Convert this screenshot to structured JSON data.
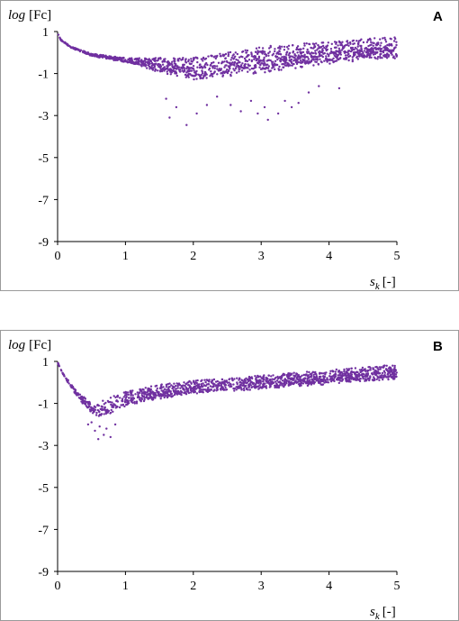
{
  "chart_data": [
    {
      "type": "scatter",
      "panel_label": "A",
      "ylabel_italic": "log",
      "ylabel_rest": "[Fc]",
      "xlabel_main": "s",
      "xlabel_sub": "k",
      "xlabel_unit": "[-]",
      "xlim": [
        0,
        5
      ],
      "ylim": [
        -9,
        1
      ],
      "x_ticks": [
        "0",
        "1",
        "2",
        "3",
        "4",
        "5"
      ],
      "y_ticks": [
        "1",
        "-1",
        "-3",
        "-5",
        "-7",
        "-9"
      ],
      "grid": false,
      "marker_color": "#7030A0",
      "trend": [
        [
          0,
          0.95
        ],
        [
          0.05,
          0.6
        ],
        [
          0.2,
          0.25
        ],
        [
          0.5,
          -0.1
        ],
        [
          1,
          -0.35
        ],
        [
          1.5,
          -0.55
        ],
        [
          2,
          -0.7
        ],
        [
          2.5,
          -0.5
        ],
        [
          3,
          -0.25
        ],
        [
          3.5,
          -0.1
        ],
        [
          4,
          0.05
        ],
        [
          4.5,
          0.2
        ],
        [
          5,
          0.3
        ]
      ],
      "spread": [
        [
          0,
          0.02
        ],
        [
          0.5,
          0.05
        ],
        [
          1,
          0.1
        ],
        [
          1.5,
          0.3
        ],
        [
          2,
          0.45
        ],
        [
          2.5,
          0.5
        ],
        [
          3,
          0.55
        ],
        [
          3.5,
          0.5
        ],
        [
          4,
          0.45
        ],
        [
          4.5,
          0.45
        ],
        [
          5,
          0.45
        ]
      ],
      "outliers": [
        [
          1.6,
          -2.2
        ],
        [
          1.65,
          -3.1
        ],
        [
          1.75,
          -2.6
        ],
        [
          1.9,
          -3.45
        ],
        [
          2.05,
          -2.9
        ],
        [
          2.2,
          -2.5
        ],
        [
          2.35,
          -2.1
        ],
        [
          2.55,
          -2.5
        ],
        [
          2.7,
          -2.8
        ],
        [
          2.85,
          -2.3
        ],
        [
          2.95,
          -2.9
        ],
        [
          3.05,
          -2.6
        ],
        [
          3.1,
          -3.2
        ],
        [
          3.25,
          -2.9
        ],
        [
          3.35,
          -2.3
        ],
        [
          3.45,
          -2.6
        ],
        [
          3.55,
          -2.4
        ],
        [
          3.7,
          -1.9
        ],
        [
          3.85,
          -1.6
        ],
        [
          4.15,
          -1.7
        ]
      ]
    },
    {
      "type": "scatter",
      "panel_label": "B",
      "ylabel_italic": "log",
      "ylabel_rest": "[Fc]",
      "xlabel_main": "s",
      "xlabel_sub": "k",
      "xlabel_unit": "[-]",
      "xlim": [
        0,
        5
      ],
      "ylim": [
        -9,
        1
      ],
      "x_ticks": [
        "0",
        "1",
        "2",
        "3",
        "4",
        "5"
      ],
      "y_ticks": [
        "1",
        "-1",
        "-3",
        "-5",
        "-7",
        "-9"
      ],
      "grid": false,
      "marker_color": "#7030A0",
      "trend": [
        [
          0,
          0.95
        ],
        [
          0.1,
          0.3
        ],
        [
          0.3,
          -0.6
        ],
        [
          0.5,
          -1.2
        ],
        [
          0.6,
          -1.3
        ],
        [
          0.8,
          -1.0
        ],
        [
          1,
          -0.75
        ],
        [
          1.5,
          -0.4
        ],
        [
          2,
          -0.2
        ],
        [
          3,
          0.05
        ],
        [
          4,
          0.3
        ],
        [
          5,
          0.55
        ]
      ],
      "spread": [
        [
          0,
          0.02
        ],
        [
          0.3,
          0.1
        ],
        [
          0.5,
          0.25
        ],
        [
          0.7,
          0.35
        ],
        [
          1,
          0.3
        ],
        [
          1.5,
          0.3
        ],
        [
          2,
          0.28
        ],
        [
          3,
          0.28
        ],
        [
          4,
          0.3
        ],
        [
          5,
          0.3
        ]
      ],
      "outliers": [
        [
          0.45,
          -2.0
        ],
        [
          0.5,
          -1.9
        ],
        [
          0.55,
          -2.3
        ],
        [
          0.6,
          -2.7
        ],
        [
          0.62,
          -2.1
        ],
        [
          0.68,
          -2.5
        ],
        [
          0.72,
          -2.2
        ],
        [
          0.78,
          -2.6
        ],
        [
          0.85,
          -2.0
        ]
      ]
    }
  ]
}
